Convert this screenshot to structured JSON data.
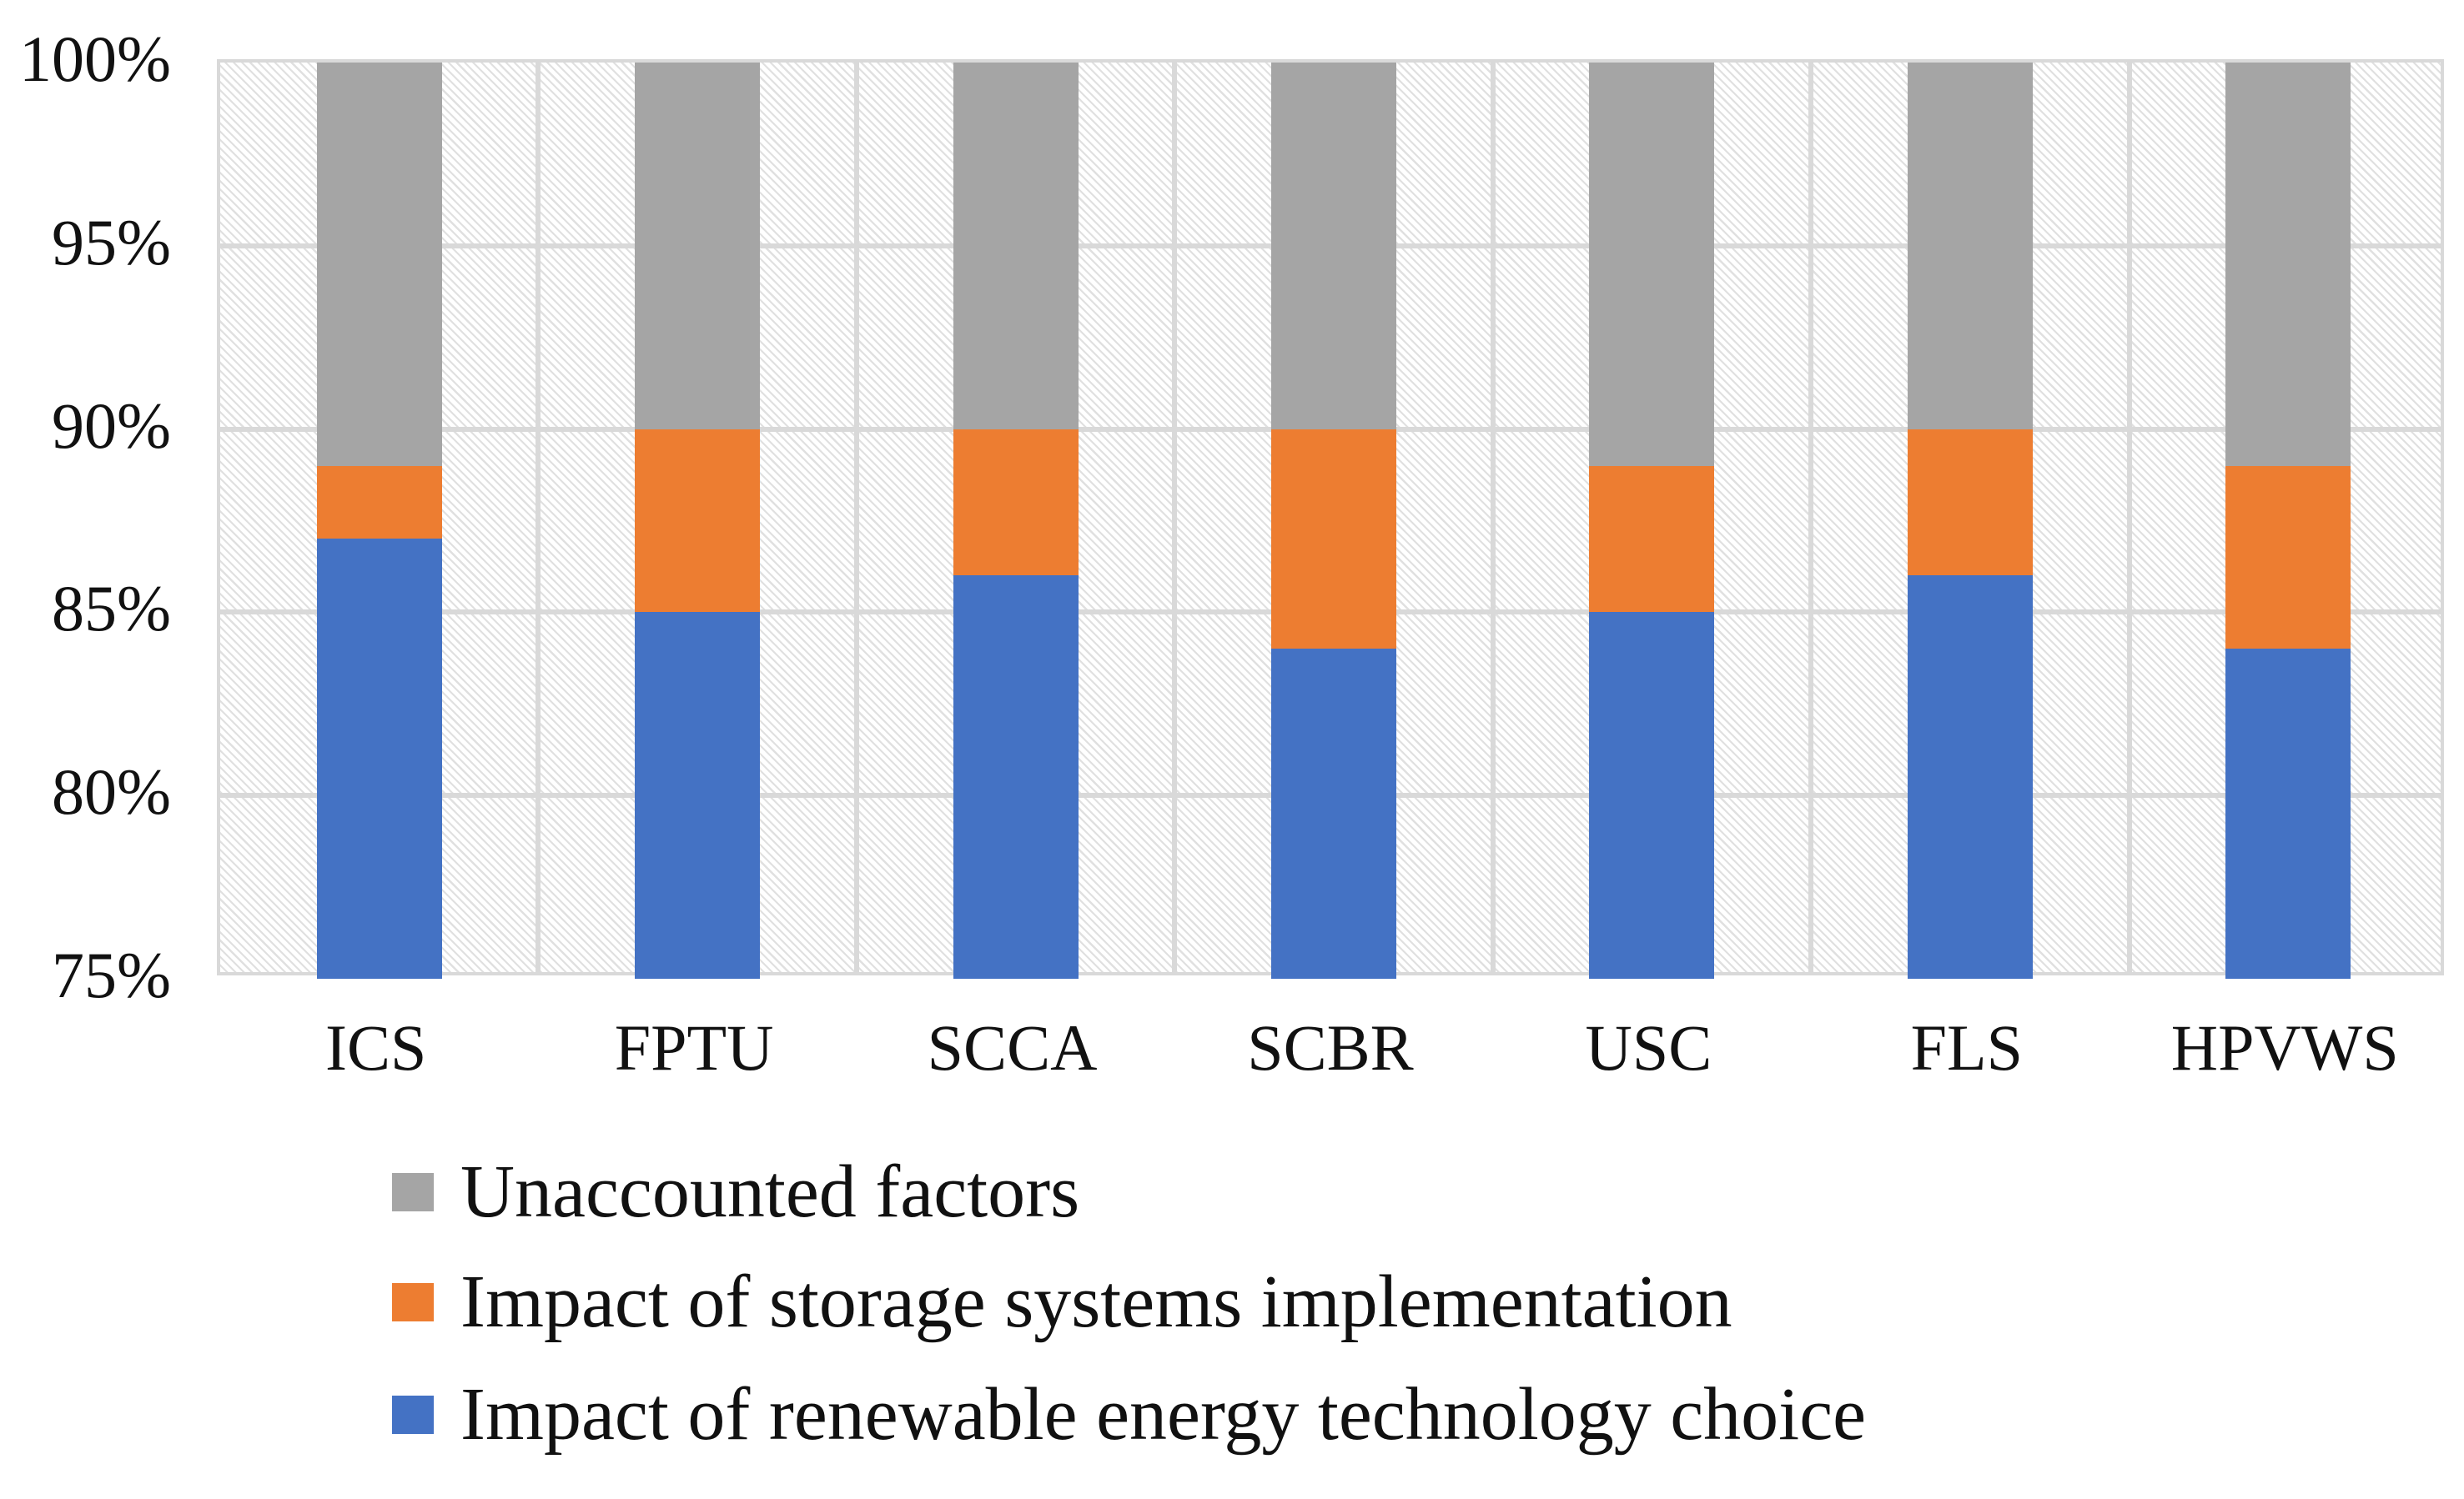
{
  "chart_data": {
    "type": "bar",
    "variant": "stacked-percent-column",
    "title": "",
    "categories": [
      "ICS",
      "FPTU",
      "SCCA",
      "SCBR",
      "USC",
      "FLS",
      "HPVWS"
    ],
    "series": [
      {
        "name": "Impact of renewable energy technology choice",
        "color": "#4472C4",
        "values": [
          87,
          85,
          86,
          84,
          85,
          86,
          84
        ]
      },
      {
        "name": "Impact of storage systems implementation",
        "color": "#ED7D31",
        "values": [
          2,
          5,
          4,
          6,
          4,
          4,
          5
        ]
      },
      {
        "name": "Unaccounted factors",
        "color": "#A5A5A5",
        "values": [
          11,
          10,
          10,
          10,
          11,
          10,
          11
        ]
      }
    ],
    "cumulative_tops_percent": {
      "blue_top": [
        87,
        85,
        86,
        84,
        85,
        86,
        84
      ],
      "orange_top": [
        89,
        90,
        90,
        90,
        89,
        90,
        89
      ],
      "gray_top": [
        100,
        100,
        100,
        100,
        100,
        100,
        100
      ]
    },
    "y_axis": {
      "min": 75,
      "max": 100,
      "tick_step": 5,
      "tick_labels": [
        "100%",
        "95%",
        "90%",
        "85%",
        "80%",
        "75%"
      ],
      "tick_values": [
        100,
        95,
        90,
        85,
        80,
        75
      ]
    },
    "xlabel": "",
    "ylabel": "",
    "grid": {
      "horizontal": true,
      "vertical": true,
      "color": "#d9d9d9"
    },
    "plot_background": {
      "pattern": "diagonal-hatch",
      "hatch_color": "#e0e0e0",
      "base_color": "#ffffff"
    },
    "legend": {
      "position": "bottom-left",
      "entries": [
        {
          "label": "Unaccounted factors",
          "color": "#A5A5A5"
        },
        {
          "label": "Impact of storage systems implementation",
          "color": "#ED7D31"
        },
        {
          "label": "Impact of renewable energy technology choice",
          "color": "#4472C4"
        }
      ]
    }
  }
}
